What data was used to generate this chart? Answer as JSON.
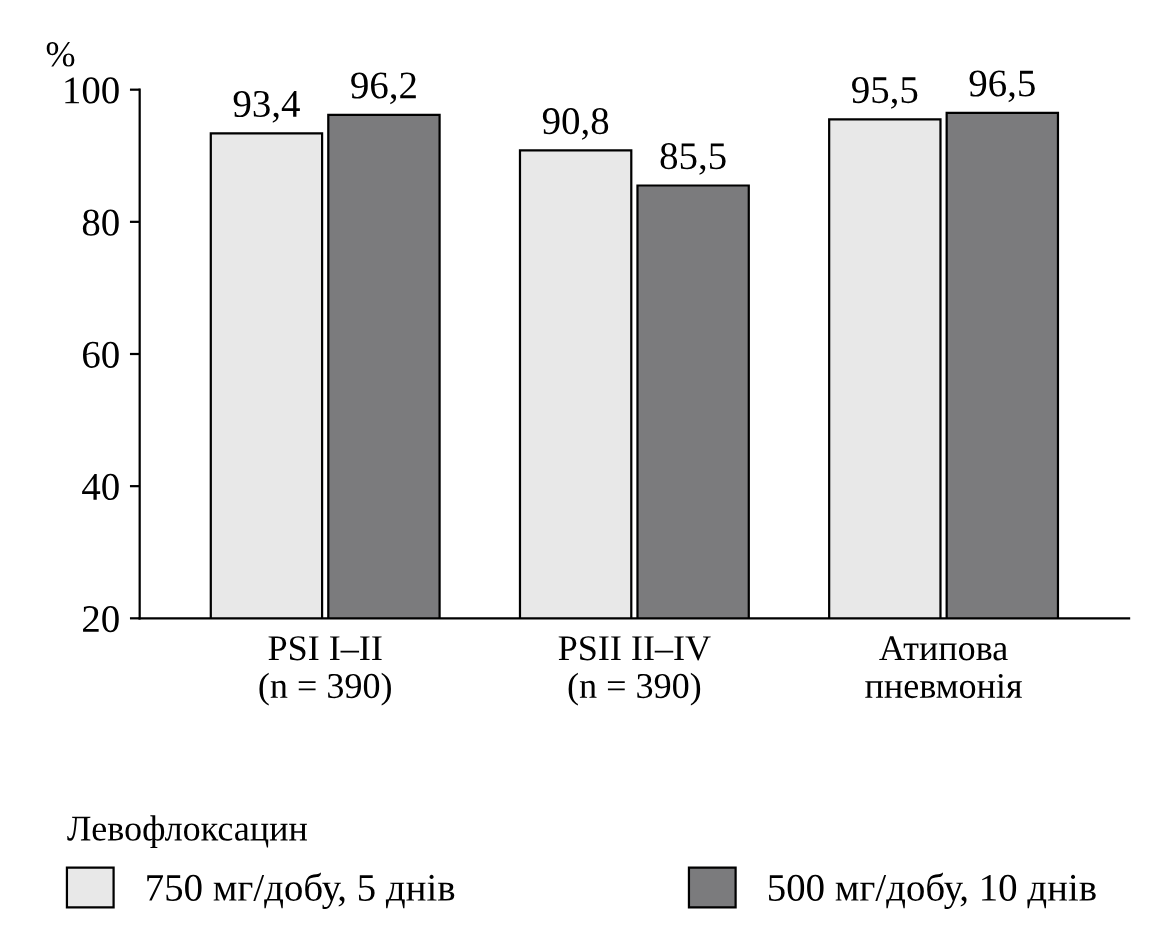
{
  "chart_data": {
    "type": "bar",
    "ylabel": "%",
    "legend_title": "Левофлоксацин",
    "legend": "bottom",
    "categories": [
      "PSI I–II\n(n = 390)",
      "PSII II–IV\n(n = 390)",
      "Атипова\nпневмонія"
    ],
    "ylim": [
      20,
      100
    ],
    "yticks": [
      20,
      40,
      60,
      80,
      100
    ],
    "grid": false,
    "series": [
      {
        "name": "750 мг/добу, 5 днів",
        "color": "#e8e8e8",
        "values": [
          93.4,
          90.8,
          95.5
        ],
        "value_labels": [
          "93,4",
          "90,8",
          "95,5"
        ]
      },
      {
        "name": "500 мг/добу, 10 днів",
        "color": "#7b7b7d",
        "values": [
          96.2,
          85.5,
          96.5
        ],
        "value_labels": [
          "96,2",
          "85,5",
          "96,5"
        ]
      }
    ]
  }
}
